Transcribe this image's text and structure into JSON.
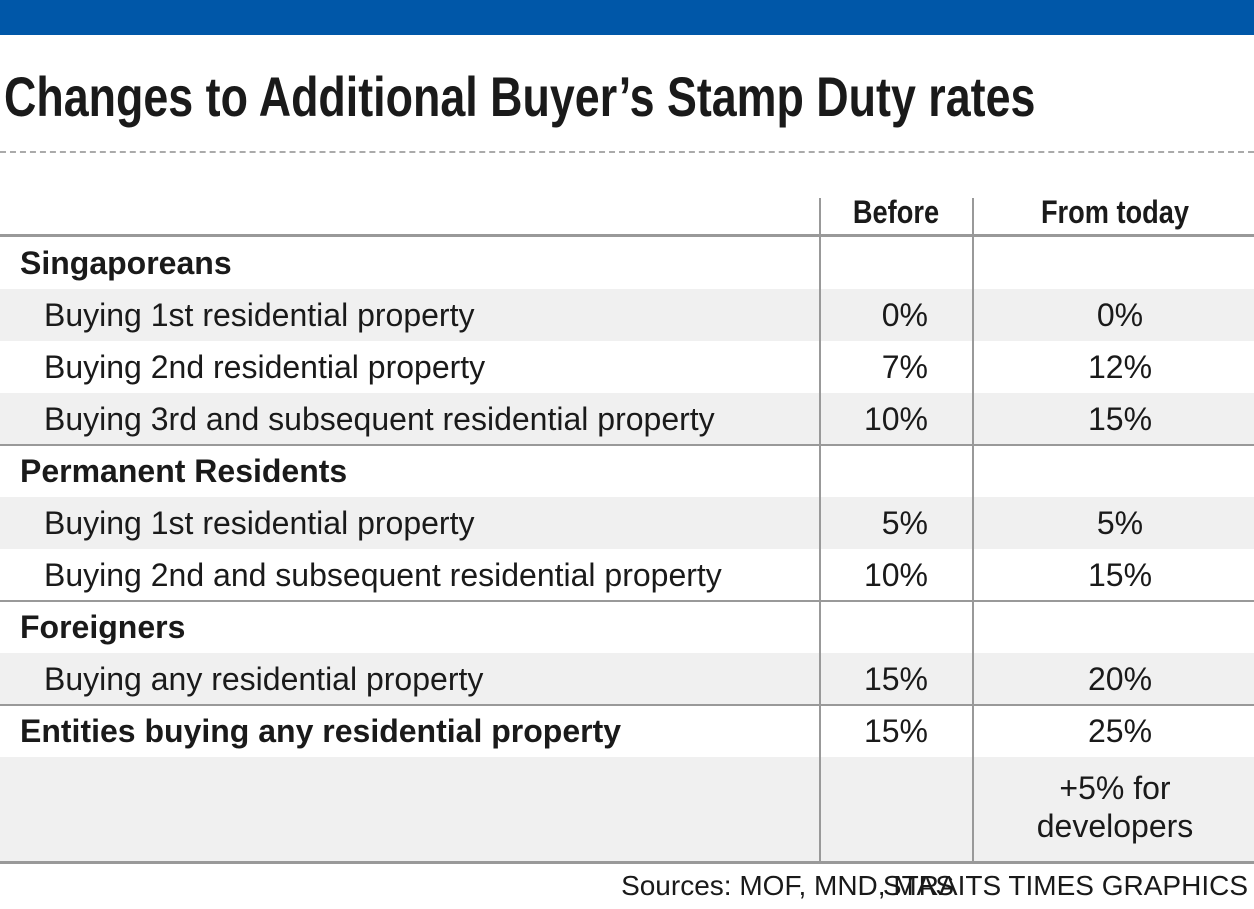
{
  "header": {
    "title": "Changes to Additional Buyer’s Stamp Duty rates"
  },
  "table": {
    "columns": [
      "Before",
      "From today"
    ],
    "groups": [
      {
        "label": "Singaporeans",
        "rows": [
          {
            "label": "Buying 1st residential property",
            "before": "0%",
            "after": "0%"
          },
          {
            "label": "Buying 2nd residential property",
            "before": "7%",
            "after": "12%"
          },
          {
            "label": "Buying 3rd and subsequent residential property",
            "before": "10%",
            "after": "15%"
          }
        ]
      },
      {
        "label": "Permanent Residents",
        "rows": [
          {
            "label": "Buying 1st residential property",
            "before": "5%",
            "after": "5%"
          },
          {
            "label": "Buying 2nd and subsequent residential property",
            "before": "10%",
            "after": "15%"
          }
        ]
      },
      {
        "label": "Foreigners",
        "rows": [
          {
            "label": "Buying any residential property",
            "before": "15%",
            "after": "20%"
          }
        ]
      }
    ],
    "entities": {
      "label": "Entities buying any residential property",
      "before": "15%",
      "after": "25%",
      "note": "+5% for developers"
    }
  },
  "footer": {
    "sources": "Sources: MOF, MND, MAS",
    "credit": "STRAITS TIMES GRAPHICS"
  }
}
